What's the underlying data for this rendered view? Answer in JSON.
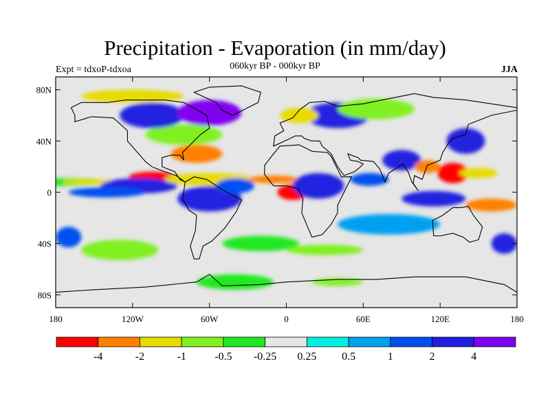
{
  "title": "Precipitation - Evaporation (in mm/day)",
  "subtitle": "060kyr BP - 000kyr BP",
  "experiment": "Expt = tdxoP-tdxoa",
  "season": "JJA",
  "map": {
    "projection": "cylindrical-equidistant",
    "lon_range": [
      -180,
      180
    ],
    "lat_range": [
      -90,
      90
    ],
    "x_ticks": [
      {
        "value": -180,
        "label": "180"
      },
      {
        "value": -120,
        "label": "120W"
      },
      {
        "value": -60,
        "label": "60W"
      },
      {
        "value": 0,
        "label": "0"
      },
      {
        "value": 60,
        "label": "60E"
      },
      {
        "value": 120,
        "label": "120E"
      },
      {
        "value": 180,
        "label": "180"
      }
    ],
    "y_ticks": [
      {
        "value": 80,
        "label": "80N"
      },
      {
        "value": 40,
        "label": "40N"
      },
      {
        "value": 0,
        "label": "0"
      },
      {
        "value": -40,
        "label": "40S"
      },
      {
        "value": -80,
        "label": "80S"
      }
    ],
    "neutral_color": "#e6e6e6"
  },
  "colorbar": {
    "colors": [
      "#ff0000",
      "#ff8000",
      "#e6dc00",
      "#80f020",
      "#20e820",
      "#e6e6e6",
      "#00f0e0",
      "#00a0f0",
      "#0050f0",
      "#2020e0",
      "#8000f0"
    ],
    "labels": [
      "-4",
      "-2",
      "-1",
      "-0.5",
      "-0.25",
      "0.25",
      "0.5",
      "1",
      "2",
      "4"
    ]
  },
  "field_regions": [
    {
      "lon": -175,
      "lat": 8,
      "rx": 40,
      "ry": 3,
      "level": 4
    },
    {
      "lon": -150,
      "lat": 8,
      "rx": 25,
      "ry": 2,
      "level": 2
    },
    {
      "lon": -105,
      "lat": 12,
      "rx": 18,
      "ry": 4,
      "level": 0
    },
    {
      "lon": -115,
      "lat": 5,
      "rx": 30,
      "ry": 6,
      "level": 9
    },
    {
      "lon": -140,
      "lat": 0,
      "rx": 30,
      "ry": 4,
      "level": 8
    },
    {
      "lon": -60,
      "lat": 10,
      "rx": 35,
      "ry": 5,
      "level": 2
    },
    {
      "lon": -70,
      "lat": 30,
      "rx": 20,
      "ry": 7,
      "level": 1
    },
    {
      "lon": -80,
      "lat": 45,
      "rx": 30,
      "ry": 8,
      "level": 3
    },
    {
      "lon": -105,
      "lat": 60,
      "rx": 25,
      "ry": 10,
      "level": 9
    },
    {
      "lon": -60,
      "lat": 62,
      "rx": 25,
      "ry": 10,
      "level": 10
    },
    {
      "lon": -120,
      "lat": 75,
      "rx": 40,
      "ry": 5,
      "level": 2
    },
    {
      "lon": -60,
      "lat": -5,
      "rx": 25,
      "ry": 10,
      "level": 9
    },
    {
      "lon": -40,
      "lat": 5,
      "rx": 15,
      "ry": 6,
      "level": 8
    },
    {
      "lon": 5,
      "lat": 0,
      "rx": 12,
      "ry": 6,
      "level": 0
    },
    {
      "lon": -10,
      "lat": 10,
      "rx": 20,
      "ry": 3,
      "level": 1
    },
    {
      "lon": 25,
      "lat": 5,
      "rx": 20,
      "ry": 10,
      "level": 9
    },
    {
      "lon": 40,
      "lat": 60,
      "rx": 25,
      "ry": 10,
      "level": 9
    },
    {
      "lon": 10,
      "lat": 60,
      "rx": 15,
      "ry": 6,
      "level": 2
    },
    {
      "lon": 70,
      "lat": 65,
      "rx": 30,
      "ry": 8,
      "level": 3
    },
    {
      "lon": 90,
      "lat": 25,
      "rx": 15,
      "ry": 8,
      "level": 9
    },
    {
      "lon": 65,
      "lat": 10,
      "rx": 15,
      "ry": 5,
      "level": 8
    },
    {
      "lon": 110,
      "lat": 20,
      "rx": 10,
      "ry": 5,
      "level": 1
    },
    {
      "lon": 130,
      "lat": 15,
      "rx": 12,
      "ry": 8,
      "level": 0
    },
    {
      "lon": 150,
      "lat": 15,
      "rx": 15,
      "ry": 4,
      "level": 2
    },
    {
      "lon": 115,
      "lat": -5,
      "rx": 25,
      "ry": 6,
      "level": 9
    },
    {
      "lon": 160,
      "lat": -10,
      "rx": 20,
      "ry": 5,
      "level": 1
    },
    {
      "lon": 140,
      "lat": 40,
      "rx": 15,
      "ry": 10,
      "level": 9
    },
    {
      "lon": 80,
      "lat": -25,
      "rx": 40,
      "ry": 8,
      "level": 7
    },
    {
      "lon": -20,
      "lat": -40,
      "rx": 30,
      "ry": 6,
      "level": 4
    },
    {
      "lon": 30,
      "lat": -45,
      "rx": 30,
      "ry": 4,
      "level": 3
    },
    {
      "lon": -130,
      "lat": -45,
      "rx": 30,
      "ry": 8,
      "level": 3
    },
    {
      "lon": -170,
      "lat": -35,
      "rx": 10,
      "ry": 8,
      "level": 8
    },
    {
      "lon": 170,
      "lat": -40,
      "rx": 10,
      "ry": 8,
      "level": 9
    },
    {
      "lon": -40,
      "lat": -70,
      "rx": 30,
      "ry": 6,
      "level": 4
    },
    {
      "lon": 40,
      "lat": -70,
      "rx": 20,
      "ry": 3,
      "level": 3
    }
  ],
  "land_outlines": [
    {
      "name": "north-america",
      "points": [
        [
          -168,
          66
        ],
        [
          -160,
          70
        ],
        [
          -140,
          70
        ],
        [
          -125,
          72
        ],
        [
          -95,
          72
        ],
        [
          -80,
          70
        ],
        [
          -62,
          60
        ],
        [
          -60,
          50
        ],
        [
          -67,
          45
        ],
        [
          -75,
          37
        ],
        [
          -81,
          31
        ],
        [
          -80,
          25
        ],
        [
          -83,
          29
        ],
        [
          -90,
          29
        ],
        [
          -97,
          27
        ],
        [
          -97,
          20
        ],
        [
          -92,
          18
        ],
        [
          -87,
          16
        ],
        [
          -83,
          10
        ],
        [
          -79,
          8
        ],
        [
          -86,
          13
        ],
        [
          -95,
          16
        ],
        [
          -105,
          20
        ],
        [
          -110,
          24
        ],
        [
          -117,
          32
        ],
        [
          -124,
          40
        ],
        [
          -124,
          48
        ],
        [
          -135,
          58
        ],
        [
          -152,
          59
        ],
        [
          -165,
          55
        ],
        [
          -165,
          60
        ],
        [
          -168,
          66
        ]
      ]
    },
    {
      "name": "greenland",
      "points": [
        [
          -72,
          78
        ],
        [
          -60,
          82
        ],
        [
          -35,
          83
        ],
        [
          -20,
          78
        ],
        [
          -22,
          70
        ],
        [
          -42,
          60
        ],
        [
          -50,
          64
        ],
        [
          -55,
          70
        ],
        [
          -72,
          78
        ]
      ]
    },
    {
      "name": "south-america",
      "points": [
        [
          -79,
          8
        ],
        [
          -72,
          12
        ],
        [
          -62,
          10
        ],
        [
          -50,
          2
        ],
        [
          -35,
          -6
        ],
        [
          -39,
          -15
        ],
        [
          -48,
          -28
        ],
        [
          -58,
          -38
        ],
        [
          -65,
          -42
        ],
        [
          -68,
          -52
        ],
        [
          -72,
          -52
        ],
        [
          -75,
          -42
        ],
        [
          -71,
          -30
        ],
        [
          -70,
          -18
        ],
        [
          -76,
          -14
        ],
        [
          -81,
          -5
        ],
        [
          -80,
          1
        ],
        [
          -79,
          8
        ]
      ]
    },
    {
      "name": "africa",
      "points": [
        [
          -17,
          21
        ],
        [
          -10,
          30
        ],
        [
          -5,
          36
        ],
        [
          10,
          37
        ],
        [
          20,
          32
        ],
        [
          32,
          31
        ],
        [
          35,
          28
        ],
        [
          43,
          12
        ],
        [
          51,
          12
        ],
        [
          45,
          0
        ],
        [
          40,
          -10
        ],
        [
          40,
          -16
        ],
        [
          35,
          -25
        ],
        [
          28,
          -33
        ],
        [
          20,
          -35
        ],
        [
          17,
          -28
        ],
        [
          12,
          -16
        ],
        [
          13,
          -5
        ],
        [
          9,
          3
        ],
        [
          0,
          5
        ],
        [
          -10,
          5
        ],
        [
          -17,
          14
        ],
        [
          -17,
          21
        ]
      ]
    },
    {
      "name": "eurasia",
      "points": [
        [
          -10,
          36
        ],
        [
          -9,
          44
        ],
        [
          -2,
          48
        ],
        [
          -5,
          54
        ],
        [
          5,
          58
        ],
        [
          10,
          64
        ],
        [
          18,
          70
        ],
        [
          30,
          71
        ],
        [
          40,
          67
        ],
        [
          60,
          69
        ],
        [
          80,
          73
        ],
        [
          100,
          77
        ],
        [
          115,
          74
        ],
        [
          140,
          72
        ],
        [
          160,
          69
        ],
        [
          180,
          66
        ],
        [
          180,
          64
        ],
        [
          160,
          60
        ],
        [
          155,
          58
        ],
        [
          142,
          53
        ],
        [
          140,
          45
        ],
        [
          130,
          42
        ],
        [
          127,
          39
        ],
        [
          122,
          31
        ],
        [
          120,
          25
        ],
        [
          110,
          21
        ],
        [
          106,
          10
        ],
        [
          100,
          13
        ],
        [
          99,
          7
        ],
        [
          103,
          1
        ],
        [
          98,
          8
        ],
        [
          95,
          16
        ],
        [
          91,
          22
        ],
        [
          80,
          15
        ],
        [
          77,
          8
        ],
        [
          73,
          18
        ],
        [
          68,
          24
        ],
        [
          58,
          25
        ],
        [
          56,
          27
        ],
        [
          48,
          30
        ],
        [
          50,
          25
        ],
        [
          56,
          24
        ],
        [
          60,
          22
        ],
        [
          57,
          19
        ],
        [
          53,
          16
        ],
        [
          45,
          13
        ],
        [
          40,
          20
        ],
        [
          35,
          30
        ],
        [
          28,
          36
        ],
        [
          26,
          40
        ],
        [
          20,
          40
        ],
        [
          14,
          42
        ],
        [
          12,
          44
        ],
        [
          7,
          44
        ],
        [
          3,
          42
        ],
        [
          -10,
          36
        ]
      ]
    },
    {
      "name": "australia",
      "points": [
        [
          114,
          -22
        ],
        [
          122,
          -18
        ],
        [
          130,
          -12
        ],
        [
          136,
          -12
        ],
        [
          142,
          -11
        ],
        [
          146,
          -18
        ],
        [
          153,
          -27
        ],
        [
          150,
          -37
        ],
        [
          143,
          -39
        ],
        [
          138,
          -35
        ],
        [
          130,
          -32
        ],
        [
          120,
          -34
        ],
        [
          115,
          -34
        ],
        [
          114,
          -22
        ]
      ]
    },
    {
      "name": "antarctica",
      "points": [
        [
          -180,
          -78
        ],
        [
          -150,
          -76
        ],
        [
          -110,
          -74
        ],
        [
          -70,
          -70
        ],
        [
          -60,
          -64
        ],
        [
          -50,
          -73
        ],
        [
          -20,
          -72
        ],
        [
          0,
          -70
        ],
        [
          40,
          -68
        ],
        [
          70,
          -68
        ],
        [
          100,
          -66
        ],
        [
          140,
          -66
        ],
        [
          170,
          -72
        ],
        [
          180,
          -78
        ]
      ]
    }
  ]
}
